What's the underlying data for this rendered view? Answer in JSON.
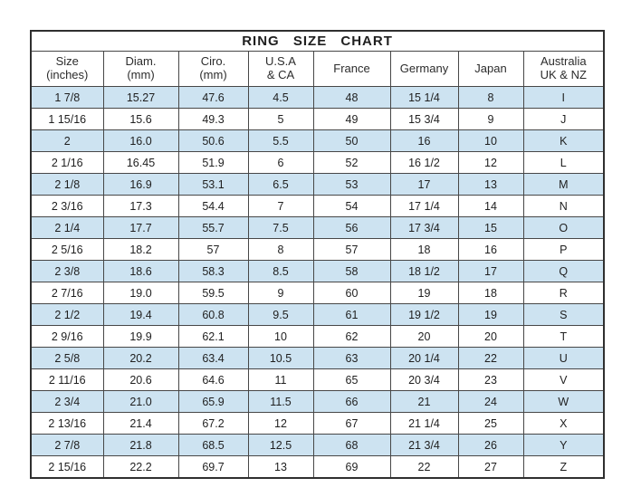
{
  "title": "RING  SIZE  CHART",
  "colors": {
    "row_alt_blue": "#cde3f1",
    "row_white": "#ffffff",
    "border": "#474747",
    "outer_border": "#2f2f2f",
    "text": "#222222",
    "background": "#ffffff"
  },
  "chart_data": {
    "type": "table",
    "title": "RING SIZE CHART",
    "columns": [
      {
        "label": "Size",
        "sublabel": "(inches)"
      },
      {
        "label": "Diam.",
        "sublabel": "(mm)"
      },
      {
        "label": "Ciro.",
        "sublabel": "(mm)"
      },
      {
        "label": "U.S.A",
        "sublabel": "& CA"
      },
      {
        "label": "France",
        "sublabel": ""
      },
      {
        "label": "Germany",
        "sublabel": ""
      },
      {
        "label": "Japan",
        "sublabel": ""
      },
      {
        "label": "Australia",
        "sublabel": "UK & NZ"
      }
    ],
    "rows": [
      [
        "1 7/8",
        "15.27",
        "47.6",
        "4.5",
        "48",
        "15 1/4",
        "8",
        "I"
      ],
      [
        "1 15/16",
        "15.6",
        "49.3",
        "5",
        "49",
        "15 3/4",
        "9",
        "J"
      ],
      [
        "2",
        "16.0",
        "50.6",
        "5.5",
        "50",
        "16",
        "10",
        "K"
      ],
      [
        "2 1/16",
        "16.45",
        "51.9",
        "6",
        "52",
        "16 1/2",
        "12",
        "L"
      ],
      [
        "2 1/8",
        "16.9",
        "53.1",
        "6.5",
        "53",
        "17",
        "13",
        "M"
      ],
      [
        "2 3/16",
        "17.3",
        "54.4",
        "7",
        "54",
        "17 1/4",
        "14",
        "N"
      ],
      [
        "2 1/4",
        "17.7",
        "55.7",
        "7.5",
        "56",
        "17 3/4",
        "15",
        "O"
      ],
      [
        "2 5/16",
        "18.2",
        "57",
        "8",
        "57",
        "18",
        "16",
        "P"
      ],
      [
        "2 3/8",
        "18.6",
        "58.3",
        "8.5",
        "58",
        "18 1/2",
        "17",
        "Q"
      ],
      [
        "2 7/16",
        "19.0",
        "59.5",
        "9",
        "60",
        "19",
        "18",
        "R"
      ],
      [
        "2 1/2",
        "19.4",
        "60.8",
        "9.5",
        "61",
        "19 1/2",
        "19",
        "S"
      ],
      [
        "2 9/16",
        "19.9",
        "62.1",
        "10",
        "62",
        "20",
        "20",
        "T"
      ],
      [
        "2 5/8",
        "20.2",
        "63.4",
        "10.5",
        "63",
        "20 1/4",
        "22",
        "U"
      ],
      [
        "2 11/16",
        "20.6",
        "64.6",
        "11",
        "65",
        "20 3/4",
        "23",
        "V"
      ],
      [
        "2 3/4",
        "21.0",
        "65.9",
        "11.5",
        "66",
        "21",
        "24",
        "W"
      ],
      [
        "2 13/16",
        "21.4",
        "67.2",
        "12",
        "67",
        "21 1/4",
        "25",
        "X"
      ],
      [
        "2 7/8",
        "21.8",
        "68.5",
        "12.5",
        "68",
        "21 3/4",
        "26",
        "Y"
      ],
      [
        "2 15/16",
        "22.2",
        "69.7",
        "13",
        "69",
        "22",
        "27",
        "Z"
      ]
    ],
    "layout": {
      "alternating_rows": "odd rows light blue, even rows white",
      "grid": true
    }
  }
}
